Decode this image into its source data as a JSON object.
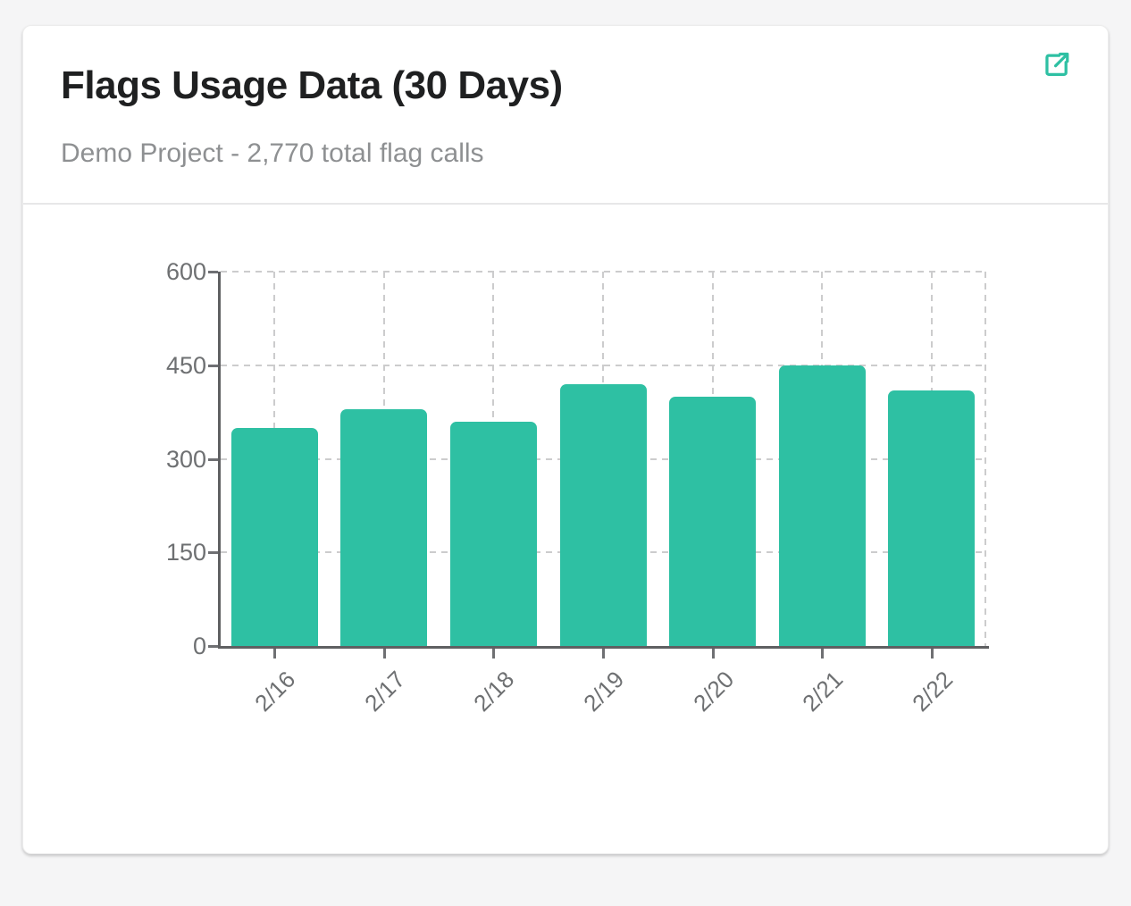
{
  "card": {
    "title": "Flags Usage Data (30 Days)",
    "subtitle": "Demo Project - 2,770 total flag calls",
    "expand_icon": "external-link-icon"
  },
  "colors": {
    "page_bg": "#f5f5f6",
    "card_bg": "#ffffff",
    "accent": "#2ec0a3",
    "bar": "#2ec0a3",
    "axis": "#5f6062",
    "grid": "#cccccd",
    "tick_label": "#6e7072",
    "title_text": "#1f2021",
    "subtitle_text": "#8e9092",
    "divider": "#e7e7e8"
  },
  "chart_data": {
    "type": "bar",
    "categories": [
      "2/16",
      "2/17",
      "2/18",
      "2/19",
      "2/20",
      "2/21",
      "2/22"
    ],
    "values": [
      350,
      380,
      360,
      420,
      400,
      450,
      410
    ],
    "total": 2770,
    "title": "Flags Usage Data (30 Days)",
    "xlabel": "",
    "ylabel": "",
    "ylim": [
      0,
      600
    ],
    "yticks": [
      0,
      150,
      300,
      450,
      600
    ],
    "grid": "dashed-both-axes",
    "legend": "none",
    "bar_color": "#2ec0a3",
    "x_label_rotation_deg": -45
  }
}
